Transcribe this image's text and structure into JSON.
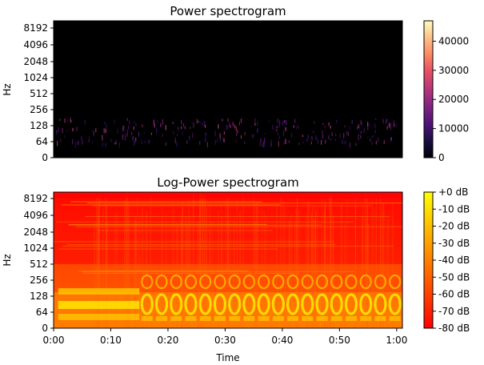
{
  "chart_data": [
    {
      "type": "heatmap",
      "title": "Power spectrogram",
      "xlabel": "",
      "ylabel": "Hz",
      "x_range_seconds": [
        0,
        61
      ],
      "y_ticks": [
        "0",
        "64",
        "128",
        "256",
        "512",
        "1024",
        "2048",
        "4096",
        "8192"
      ],
      "colormap": "magma",
      "colorbar": {
        "range": [
          0,
          47000
        ],
        "ticks": [
          "0",
          "10000",
          "20000",
          "30000",
          "40000"
        ]
      },
      "activity_bands_hz": [
        {
          "y_tick": "64",
          "description": "faint purple specks"
        }
      ]
    },
    {
      "type": "heatmap",
      "title": "Log-Power spectrogram",
      "xlabel": "Time",
      "ylabel": "Hz",
      "x_ticks": [
        "0:00",
        "0:10",
        "0:20",
        "0:30",
        "0:40",
        "0:50",
        "1:00"
      ],
      "y_ticks": [
        "0",
        "64",
        "128",
        "256",
        "512",
        "1024",
        "2048",
        "4096",
        "8192"
      ],
      "colormap": "autumn",
      "colorbar": {
        "range": [
          -80,
          0
        ],
        "ticks": [
          "+0 dB",
          "-10 dB",
          "-20 dB",
          "-30 dB",
          "-40 dB",
          "-50 dB",
          "-60 dB",
          "-70 dB",
          "-80 dB"
        ]
      }
    }
  ],
  "colors": {
    "black": "#000000",
    "autumn_low": "#ff0000",
    "autumn_high": "#ffff00"
  }
}
